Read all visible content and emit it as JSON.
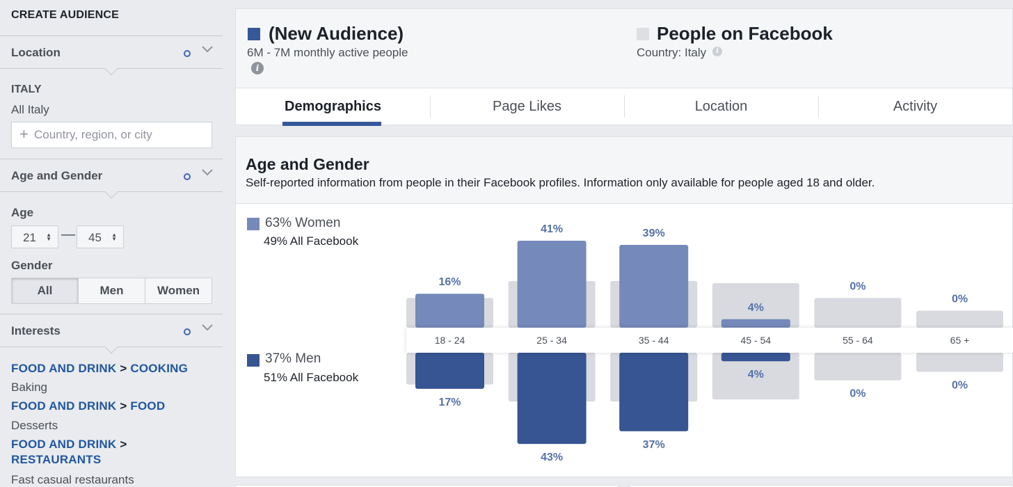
{
  "sidebar": {
    "title": "CREATE AUDIENCE",
    "location": {
      "label": "Location",
      "country": "ITALY",
      "scope": "All Italy",
      "placeholder": "Country, region, or city"
    },
    "age_gender": {
      "label": "Age and Gender",
      "age_label": "Age",
      "age_min": "21",
      "age_max": "45",
      "gender_label": "Gender",
      "gender_options": [
        "All",
        "Men",
        "Women"
      ],
      "gender_selected": "All"
    },
    "interests": {
      "label": "Interests",
      "items": [
        {
          "category": "FOOD AND DRINK",
          "sub": "COOKING",
          "value": "Baking"
        },
        {
          "category": "FOOD AND DRINK",
          "sub": "FOOD",
          "value": "Desserts"
        },
        {
          "category": "FOOD AND DRINK",
          "sub": "RESTAURANTS",
          "value": "Fast casual restaurants"
        }
      ]
    }
  },
  "header": {
    "audience": {
      "title": "(New Audience)",
      "subtitle": "6M - 7M monthly active people",
      "color": "#365899"
    },
    "comparison": {
      "title": "People on Facebook",
      "subtitle": "Country: Italy",
      "color": "#dddfe2"
    },
    "tabs": [
      "Demographics",
      "Page Likes",
      "Location",
      "Activity"
    ],
    "active_tab": "Demographics"
  },
  "age_gender_card": {
    "title": "Age and Gender",
    "description": "Self-reported information from people in their Facebook profiles. Information only available for people aged 18 and older.",
    "women": {
      "label": "63% Women",
      "compare": "49% All Facebook",
      "color": "#7589bb"
    },
    "men": {
      "label": "37% Men",
      "compare": "51% All Facebook",
      "color": "#375493"
    }
  },
  "chart_data": {
    "type": "bar",
    "categories": [
      "18 - 24",
      "25 - 34",
      "35 - 44",
      "45 - 54",
      "55 - 64",
      "65 +"
    ],
    "series": [
      {
        "name": "Women",
        "values": [
          16,
          41,
          39,
          4,
          0,
          0
        ],
        "labels": [
          "16%",
          "41%",
          "39%",
          "4%",
          "0%",
          "0%"
        ]
      },
      {
        "name": "Men",
        "values": [
          17,
          43,
          37,
          4,
          0,
          0
        ],
        "labels": [
          "17%",
          "43%",
          "37%",
          "4%",
          "0%",
          "0%"
        ]
      }
    ],
    "benchmark_women": [
      14,
      22,
      22,
      21,
      14,
      8
    ],
    "benchmark_men": [
      15,
      23,
      23,
      22,
      13,
      9
    ],
    "colors": {
      "women": "#7589bb",
      "men": "#375493",
      "benchmark": "#d8dadf",
      "label": "#5671a8"
    }
  }
}
